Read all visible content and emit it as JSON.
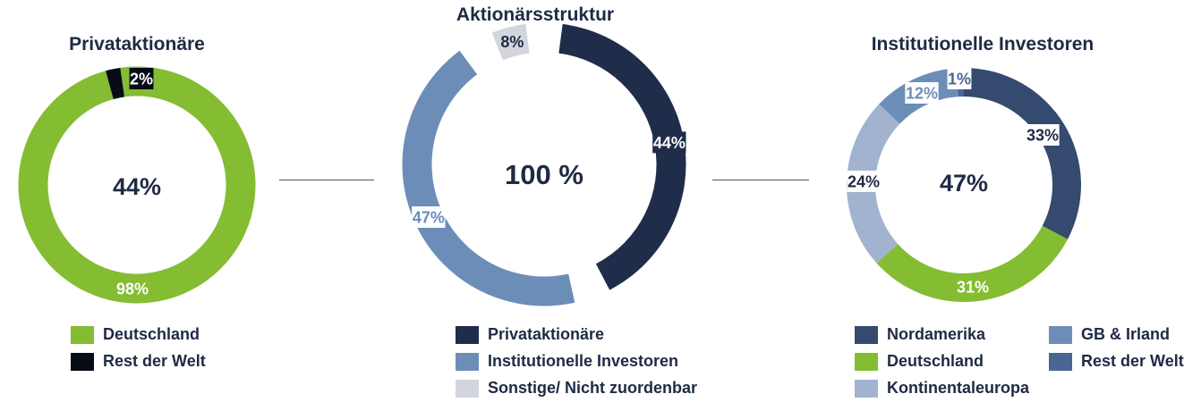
{
  "chart_data": [
    {
      "type": "pie",
      "title": "Privataktionäre",
      "center_label": "44%",
      "series": [
        {
          "name": "Deutschland",
          "value": 98,
          "label": "98%",
          "color": "#84bd32"
        },
        {
          "name": "Rest der Welt",
          "value": 2,
          "label": "2%",
          "color": "#050b17"
        }
      ]
    },
    {
      "type": "pie",
      "title": "Aktionärsstruktur",
      "center_label": "100 %",
      "series": [
        {
          "name": "Privataktionäre",
          "value": 44,
          "label": "44%",
          "color": "#1f2d4a"
        },
        {
          "name": "Institutionelle Investoren",
          "value": 47,
          "label": "47%",
          "color": "#6d8db9"
        },
        {
          "name": "Sonstige/ Nicht zuordenbar",
          "value": 8,
          "label": "8%",
          "color": "#d2d6dc"
        }
      ]
    },
    {
      "type": "pie",
      "title": "Institutionelle Investoren",
      "center_label": "47%",
      "series": [
        {
          "name": "Nordamerika",
          "value": 33,
          "label": "33%",
          "color": "#344a6e"
        },
        {
          "name": "Deutschland",
          "value": 31,
          "label": "31%",
          "color": "#84bd32"
        },
        {
          "name": "Kontinentaleuropa",
          "value": 24,
          "label": "24%",
          "color": "#a2b3d0"
        },
        {
          "name": "GB & Irland",
          "value": 12,
          "label": "12%",
          "color": "#6d8db9"
        },
        {
          "name": "Rest der Welt",
          "value": 1,
          "label": "1%",
          "color": "#4a6694"
        }
      ]
    }
  ]
}
